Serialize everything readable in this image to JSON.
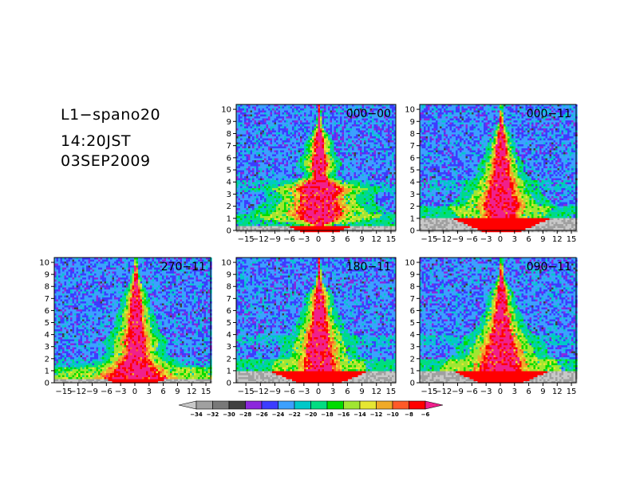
{
  "title_block": {
    "line1": "L1−spano20",
    "line2": "14:20JST",
    "line3": "03SEP2009"
  },
  "chart_data": [
    {
      "type": "heatmap",
      "panel_label": "000−00",
      "x_ticks": [
        "−15",
        "−12",
        "−9",
        "−6",
        "−3",
        "0",
        "3",
        "6",
        "9",
        "12",
        "15"
      ],
      "y_ticks": [
        "0",
        "1",
        "2",
        "3",
        "4",
        "5",
        "6",
        "7",
        "8",
        "9",
        "10"
      ],
      "xlim": [
        -17,
        16
      ],
      "ylim": [
        0,
        10.4
      ],
      "ground_level": 0.45,
      "profile": [
        [
          0.5,
          0.8
        ],
        [
          1,
          3.5
        ],
        [
          1.5,
          4.5
        ],
        [
          2,
          4
        ],
        [
          2.5,
          3.5
        ],
        [
          3,
          3.5
        ],
        [
          3.5,
          4.5
        ],
        [
          4,
          2.5
        ],
        [
          4.5,
          1
        ],
        [
          5,
          1.2
        ],
        [
          5.5,
          1.5
        ],
        [
          6,
          1.3
        ],
        [
          6.5,
          1
        ],
        [
          7,
          1
        ],
        [
          7.5,
          0.9
        ],
        [
          8,
          0.6
        ],
        [
          8.5,
          0.3
        ],
        [
          9,
          0.2
        ],
        [
          9.5,
          0.15
        ],
        [
          10,
          0.1
        ]
      ],
      "lateral_band": {
        "y": 3.8,
        "height": 0.5
      }
    },
    {
      "type": "heatmap",
      "panel_label": "000−11",
      "x_ticks": [
        "−15",
        "−12",
        "−9",
        "−6",
        "−3",
        "0",
        "3",
        "6",
        "9",
        "12",
        "15"
      ],
      "y_ticks": [
        "0",
        "1",
        "2",
        "3",
        "4",
        "5",
        "6",
        "7",
        "8",
        "9",
        "10"
      ],
      "xlim": [
        -17,
        16
      ],
      "ylim": [
        0,
        10.4
      ],
      "ground_level": 1.1,
      "profile": [
        [
          1,
          2.5
        ],
        [
          1.5,
          3
        ],
        [
          2,
          3.5
        ],
        [
          2.5,
          3.2
        ],
        [
          3,
          2.8
        ],
        [
          3.5,
          2.5
        ],
        [
          4,
          2.2
        ],
        [
          4.5,
          1.8
        ],
        [
          5,
          1.5
        ],
        [
          5.5,
          1.5
        ],
        [
          6,
          1.3
        ],
        [
          6.5,
          1
        ],
        [
          7,
          1
        ],
        [
          7.5,
          0.8
        ],
        [
          8,
          0.6
        ],
        [
          8.5,
          0.4
        ],
        [
          9,
          0.2
        ],
        [
          9.5,
          0.15
        ],
        [
          10,
          0.1
        ]
      ],
      "lateral_band": {
        "y": 3.8,
        "height": 0.4
      }
    },
    {
      "type": "heatmap",
      "panel_label": "270−11",
      "x_ticks": [
        "−15",
        "−12",
        "−9",
        "−6",
        "−3",
        "0",
        "3",
        "6",
        "9",
        "12",
        "15"
      ],
      "y_ticks": [
        "0",
        "1",
        "2",
        "3",
        "4",
        "5",
        "6",
        "7",
        "8",
        "9",
        "10"
      ],
      "xlim": [
        -17,
        16
      ],
      "ylim": [
        0,
        10.4
      ],
      "ground_level": 0.45,
      "profile": [
        [
          0.5,
          6
        ],
        [
          1,
          4.5
        ],
        [
          1.5,
          3.5
        ],
        [
          2,
          2.5
        ],
        [
          2.5,
          2
        ],
        [
          3,
          2
        ],
        [
          3.5,
          2.2
        ],
        [
          4,
          1.8
        ],
        [
          4.5,
          1.5
        ],
        [
          5,
          1.4
        ],
        [
          5.5,
          1.3
        ],
        [
          6,
          1.2
        ],
        [
          6.5,
          1
        ],
        [
          7,
          1
        ],
        [
          7.5,
          0.8
        ],
        [
          8,
          0.6
        ],
        [
          8.5,
          0.4
        ],
        [
          9,
          0.3
        ],
        [
          9.5,
          0.2
        ],
        [
          10,
          0.1
        ]
      ],
      "lateral_band": {
        "y": 1.5,
        "height": 0.6
      }
    },
    {
      "type": "heatmap",
      "panel_label": "180−11",
      "x_ticks": [
        "−15",
        "−12",
        "−9",
        "−6",
        "−3",
        "0",
        "3",
        "6",
        "9",
        "12",
        "15"
      ],
      "y_ticks": [
        "0",
        "1",
        "2",
        "3",
        "4",
        "5",
        "6",
        "7",
        "8",
        "9",
        "10"
      ],
      "xlim": [
        -17,
        16
      ],
      "ylim": [
        0,
        10.4
      ],
      "ground_level": 1.1,
      "profile": [
        [
          1,
          3
        ],
        [
          1.5,
          3
        ],
        [
          2,
          2.8
        ],
        [
          2.5,
          2.5
        ],
        [
          3,
          2.5
        ],
        [
          3.5,
          2.2
        ],
        [
          4,
          2
        ],
        [
          4.5,
          1.8
        ],
        [
          5,
          1.5
        ],
        [
          5.5,
          1.3
        ],
        [
          6,
          1.2
        ],
        [
          6.5,
          1
        ],
        [
          7,
          1
        ],
        [
          7.5,
          0.8
        ],
        [
          8,
          0.5
        ],
        [
          8.5,
          0.3
        ],
        [
          9,
          0.2
        ],
        [
          9.5,
          0.15
        ],
        [
          10,
          0.1
        ]
      ],
      "lateral_band": {
        "y": 3.6,
        "height": 0.4
      }
    },
    {
      "type": "heatmap",
      "panel_label": "090−11",
      "x_ticks": [
        "−15",
        "−12",
        "−9",
        "−6",
        "−3",
        "0",
        "3",
        "6",
        "9",
        "12",
        "15"
      ],
      "y_ticks": [
        "0",
        "1",
        "2",
        "3",
        "4",
        "5",
        "6",
        "7",
        "8",
        "9",
        "10"
      ],
      "xlim": [
        -17,
        16
      ],
      "ylim": [
        0,
        10.4
      ],
      "ground_level": 1.1,
      "profile": [
        [
          1,
          4
        ],
        [
          1.5,
          4
        ],
        [
          2,
          3.5
        ],
        [
          2.5,
          3
        ],
        [
          3,
          3
        ],
        [
          3.5,
          2.5
        ],
        [
          4,
          2.2
        ],
        [
          4.5,
          1.8
        ],
        [
          5,
          1.5
        ],
        [
          5.5,
          1.4
        ],
        [
          6,
          1.2
        ],
        [
          6.5,
          1
        ],
        [
          7,
          1
        ],
        [
          7.5,
          0.8
        ],
        [
          8,
          0.6
        ],
        [
          8.5,
          0.4
        ],
        [
          9,
          0.2
        ],
        [
          9.5,
          0.15
        ],
        [
          10,
          0.1
        ]
      ],
      "lateral_band": {
        "y": 3.6,
        "height": 0.4
      }
    }
  ],
  "colorbar": {
    "labels": [
      "−34",
      "−32",
      "−30",
      "−28",
      "−26",
      "−24",
      "−22",
      "−20",
      "−18",
      "−16",
      "−14",
      "−12",
      "−10",
      "−8",
      "−6"
    ],
    "colors": [
      "#c8c8c8",
      "#a0a0a0",
      "#787878",
      "#404040",
      "#8c28dc",
      "#3c3cff",
      "#3ca0ff",
      "#00c8c8",
      "#00dc82",
      "#00dc00",
      "#a0e632",
      "#e6e632",
      "#f0aa28",
      "#ff5a28",
      "#ff0000",
      "#f0208c"
    ],
    "ground_color": "#c8c8c8"
  }
}
